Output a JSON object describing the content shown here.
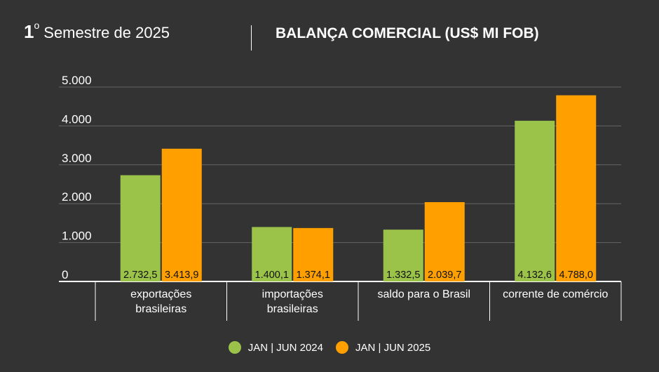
{
  "header": {
    "ordinal_number": "1",
    "ordinal_suffix": "o",
    "subtitle": "Semestre de 2025",
    "title": "BALANÇA COMERCIAL (US$ MI FOB)"
  },
  "colors": {
    "background": "#333333",
    "series_2024": "#9bc34a",
    "series_2025": "#ff9f00",
    "grid": "#666666",
    "axis": "#ffffff"
  },
  "chart_data": {
    "type": "bar",
    "title": "BALANÇA COMERCIAL (US$ MI FOB)",
    "categories": [
      [
        "exportações",
        "brasileiras"
      ],
      [
        "importações",
        "brasileiras"
      ],
      [
        "saldo para o Brasil"
      ],
      [
        "corrente de comércio"
      ]
    ],
    "series": [
      {
        "name": "JAN | JUN 2024",
        "values": [
          2732.5,
          1400.1,
          1332.5,
          4132.6
        ],
        "labels": [
          "2.732,5",
          "1.400,1",
          "1.332,5",
          "4.132,6"
        ]
      },
      {
        "name": "JAN | JUN 2025",
        "values": [
          3413.9,
          1374.1,
          2039.7,
          4788.0
        ],
        "labels": [
          "3.413,9",
          "1.374,1",
          "2.039,7",
          "4.788,0"
        ]
      }
    ],
    "ylim": [
      0,
      5000
    ],
    "yticks": [
      0,
      1000,
      2000,
      3000,
      4000,
      5000
    ],
    "ytick_labels": [
      "0",
      "1.000",
      "2.000",
      "3.000",
      "4.000",
      "5.000"
    ],
    "grid": true,
    "legend_position": "bottom"
  }
}
